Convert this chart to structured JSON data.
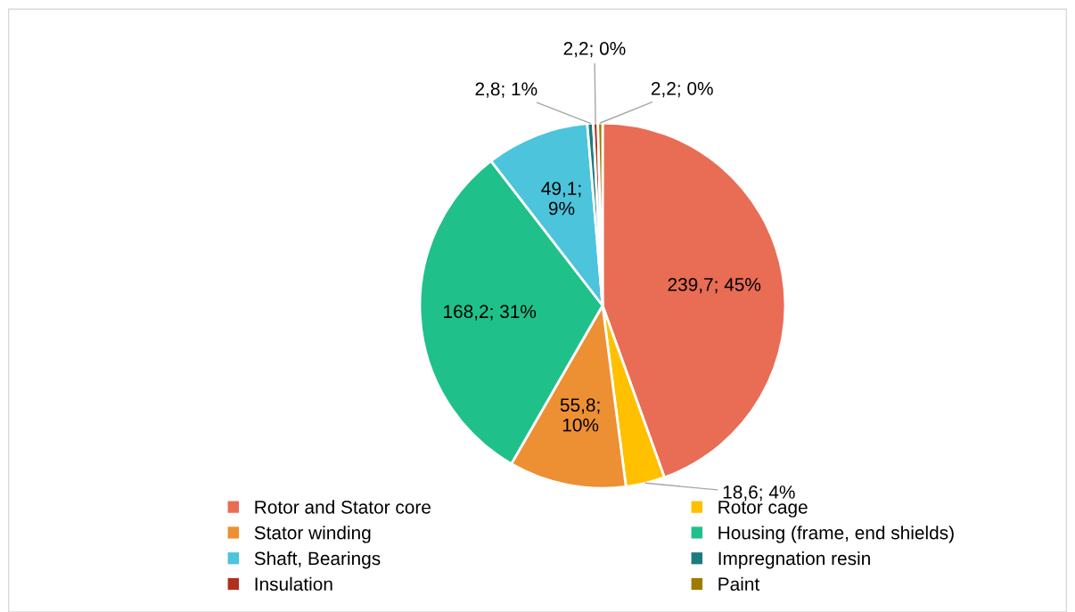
{
  "chart_data": {
    "type": "pie",
    "categories": [
      "Rotor and Stator core",
      "Rotor cage",
      "Stator winding",
      "Housing (frame, end shields)",
      "Shaft, Bearings",
      "Impregnation resin",
      "Insulation",
      "Paint"
    ],
    "values": [
      239.7,
      18.6,
      55.8,
      168.2,
      49.1,
      2.8,
      2.2,
      2.2
    ],
    "value_labels": [
      "239,7; 45%",
      "18,6; 4%",
      "55,8; 10%",
      "168,2; 31%",
      "49,1; 9%",
      "2,8; 1%",
      "2,2; 0%",
      "2,2; 0%"
    ],
    "colors": [
      "#e96c55",
      "#ffc000",
      "#ed8f33",
      "#20c08b",
      "#4bc4dc",
      "#1b7b7e",
      "#b0301e",
      "#9e7b00"
    ],
    "legend": "bottom"
  }
}
